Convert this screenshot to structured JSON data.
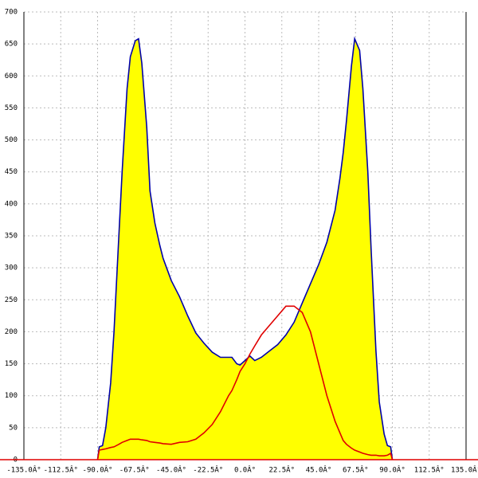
{
  "chart_data": {
    "type": "area",
    "x": [
      -90,
      -89,
      -87,
      -85,
      -82,
      -80,
      -77,
      -75,
      -72,
      -70,
      -67,
      -65,
      -63,
      -60,
      -58,
      -55,
      -52,
      -50,
      -45,
      -40,
      -35,
      -30,
      -25,
      -20,
      -15,
      -10,
      -8,
      -5,
      -3,
      0,
      3,
      6,
      10,
      15,
      20,
      25,
      30,
      35,
      40,
      45,
      50,
      55,
      58,
      60,
      62,
      65,
      67,
      70,
      72,
      75,
      77,
      80,
      82,
      85,
      87,
      89,
      90
    ],
    "series": [
      {
        "color": "#0000aa",
        "fill": "#ffff00",
        "values": [
          0,
          20,
          22,
          50,
          120,
          200,
          350,
          450,
          580,
          630,
          655,
          658,
          620,
          520,
          420,
          370,
          335,
          315,
          280,
          255,
          225,
          198,
          182,
          168,
          160,
          160,
          160,
          150,
          148,
          155,
          162,
          155,
          160,
          170,
          180,
          195,
          215,
          245,
          275,
          305,
          340,
          390,
          440,
          480,
          530,
          615,
          658,
          640,
          580,
          450,
          330,
          170,
          90,
          40,
          22,
          20,
          0
        ]
      },
      {
        "color": "#e00000",
        "values": [
          0,
          15,
          16,
          17,
          19,
          20,
          24,
          27,
          30,
          32,
          32,
          32,
          31,
          30,
          28,
          27,
          26,
          25,
          24,
          27,
          28,
          32,
          42,
          55,
          75,
          100,
          108,
          125,
          138,
          150,
          165,
          178,
          195,
          210,
          225,
          240,
          240,
          230,
          200,
          150,
          100,
          60,
          42,
          30,
          24,
          18,
          15,
          12,
          10,
          8,
          7,
          7,
          6,
          6,
          7,
          10,
          0
        ]
      }
    ],
    "xlim": [
      -135,
      135
    ],
    "ylim": [
      0,
      700
    ],
    "xticks": [
      {
        "value": -135,
        "label": "-135.0Â°"
      },
      {
        "value": -112.5,
        "label": "-112.5Â°"
      },
      {
        "value": -90,
        "label": "-90.0Â°"
      },
      {
        "value": -67.5,
        "label": "-67.5Â°"
      },
      {
        "value": -45,
        "label": "-45.0Â°"
      },
      {
        "value": -22.5,
        "label": "-22.5Â°"
      },
      {
        "value": 0,
        "label": "0.0Â°"
      },
      {
        "value": 22.5,
        "label": "22.5Â°"
      },
      {
        "value": 45,
        "label": "45.0Â°"
      },
      {
        "value": 67.5,
        "label": "67.5Â°"
      },
      {
        "value": 90,
        "label": "90.0Â°"
      },
      {
        "value": 112.5,
        "label": "112.5Â°"
      },
      {
        "value": 135,
        "label": "135.0Â°"
      }
    ],
    "yticks": [
      0,
      50,
      100,
      150,
      200,
      250,
      300,
      350,
      400,
      450,
      500,
      550,
      600,
      650,
      700
    ],
    "grid": true
  }
}
